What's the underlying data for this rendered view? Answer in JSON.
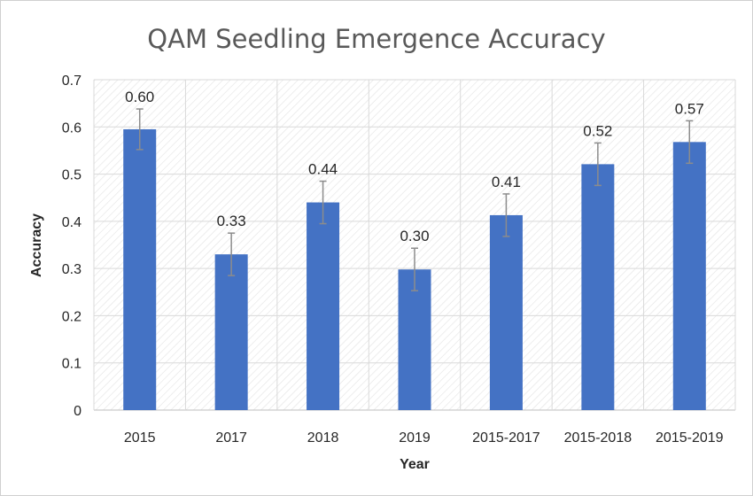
{
  "chart_data": {
    "type": "bar",
    "title": "QAM Seedling Emergence Accuracy",
    "xlabel": "Year",
    "ylabel": "Accuracy",
    "categories": [
      "2015",
      "2017",
      "2018",
      "2019",
      "2015-2017",
      "2015-2018",
      "2015-2019"
    ],
    "values": [
      0.595,
      0.33,
      0.44,
      0.298,
      0.413,
      0.521,
      0.568
    ],
    "data_labels": [
      "0.60",
      "0.33",
      "0.44",
      "0.30",
      "0.41",
      "0.52",
      "0.57"
    ],
    "error": [
      0.043,
      0.045,
      0.045,
      0.045,
      0.045,
      0.045,
      0.045
    ],
    "ylim": [
      0,
      0.7
    ],
    "yticks": [
      "0",
      "0.1",
      "0.2",
      "0.3",
      "0.4",
      "0.5",
      "0.6",
      "0.7"
    ],
    "grid": true,
    "legend": "none",
    "colors": {
      "bar": "#4472C4",
      "error_bar": "#8C8C8C",
      "grid": "#D9D9D9",
      "title": "#595959",
      "text": "#262626"
    }
  }
}
